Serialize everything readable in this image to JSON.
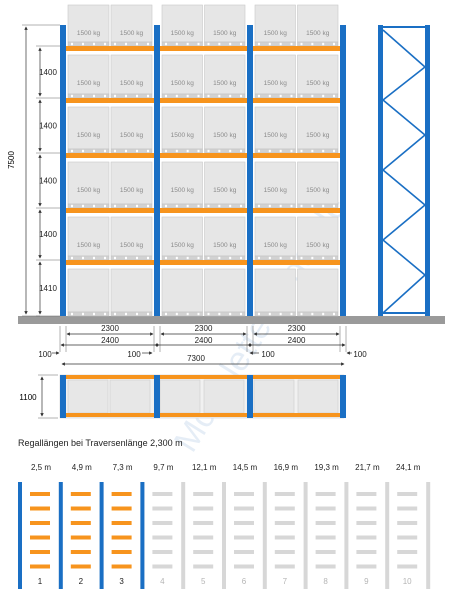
{
  "load_label": "1500 kg",
  "front_view": {
    "total_height": "7500",
    "level_heights": [
      "1400",
      "1400",
      "1400",
      "1400",
      "1410"
    ],
    "beam_length": "2300",
    "bay_width": "2400",
    "edge_gap": "100",
    "total_width": "7300"
  },
  "plan_view": {
    "depth": "1100"
  },
  "watermark": "McPalettenregal.de",
  "caption": "Regallängen bei Traversenlänge 2,300 m",
  "lengths": [
    {
      "label": "2,5 m",
      "index": "1",
      "active": true
    },
    {
      "label": "4,9 m",
      "index": "2",
      "active": true
    },
    {
      "label": "7,3 m",
      "index": "3",
      "active": true
    },
    {
      "label": "9,7 m",
      "index": "4",
      "active": false
    },
    {
      "label": "12,1 m",
      "index": "5",
      "active": false
    },
    {
      "label": "14,5 m",
      "index": "6",
      "active": false
    },
    {
      "label": "16,9 m",
      "index": "7",
      "active": false
    },
    {
      "label": "19,3 m",
      "index": "8",
      "active": false
    },
    {
      "label": "21,7 m",
      "index": "9",
      "active": false
    },
    {
      "label": "24,1 m",
      "index": "10",
      "active": false
    }
  ],
  "colors": {
    "upright": "#1a6fc4",
    "beam": "#f7941d",
    "pallet_box": "#e6e6e6",
    "floor": "#9a9a9a",
    "inactive": "#d7d7d7"
  }
}
